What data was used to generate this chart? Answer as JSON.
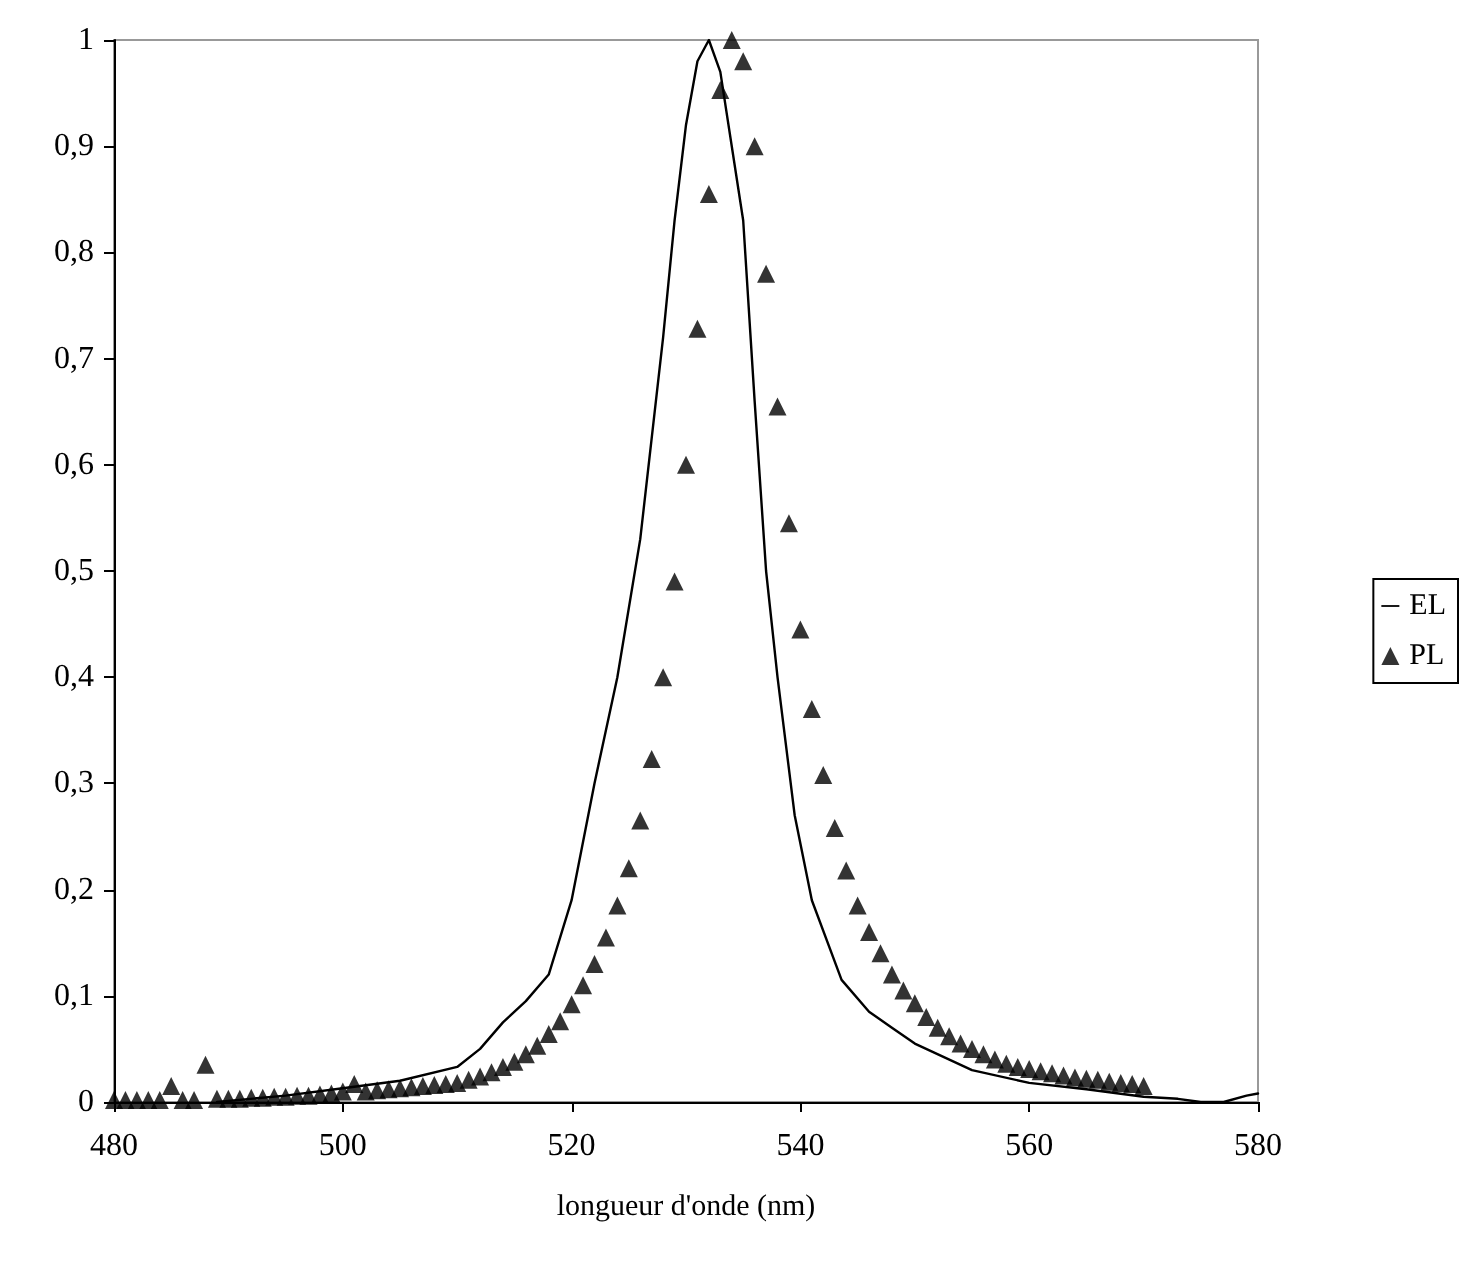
{
  "chart_data": {
    "type": "line",
    "xlabel": "longueur d'onde (nm)",
    "xlim": [
      480,
      580
    ],
    "xticks": [
      480,
      500,
      520,
      540,
      560,
      580
    ],
    "ylim": [
      0,
      1
    ],
    "yticks": [
      {
        "value": 0,
        "label": "0"
      },
      {
        "value": 0.1,
        "label": "0,1"
      },
      {
        "value": 0.2,
        "label": "0,2"
      },
      {
        "value": 0.3,
        "label": "0,3"
      },
      {
        "value": 0.4,
        "label": "0,4"
      },
      {
        "value": 0.5,
        "label": "0,5"
      },
      {
        "value": 0.6,
        "label": "0,6"
      },
      {
        "value": 0.7,
        "label": "0,7"
      },
      {
        "value": 0.8,
        "label": "0,8"
      },
      {
        "value": 0.9,
        "label": "0,9"
      },
      {
        "value": 1,
        "label": "1"
      }
    ],
    "grid": false,
    "legend": "right",
    "series": [
      {
        "name": "EL",
        "marker": "none",
        "line_style": "solid",
        "color": "#000000",
        "x": [
          489,
          495,
          500,
          505,
          510,
          512,
          514,
          516,
          518,
          520,
          522,
          524,
          526,
          528,
          529,
          530,
          531,
          532,
          533,
          534,
          535,
          536,
          537,
          538,
          539.5,
          541,
          543.6,
          546,
          548,
          550,
          555,
          560,
          565,
          570,
          573,
          575,
          577,
          579,
          580
        ],
        "values": [
          0,
          0.006,
          0.013,
          0.02,
          0.033,
          0.05,
          0.075,
          0.095,
          0.12,
          0.19,
          0.3,
          0.4,
          0.53,
          0.72,
          0.83,
          0.92,
          0.98,
          1,
          0.97,
          0.9,
          0.83,
          0.66,
          0.5,
          0.4,
          0.27,
          0.19,
          0.115,
          0.085,
          0.07,
          0.055,
          0.03,
          0.018,
          0.012,
          0.005,
          0.003,
          0,
          0,
          0.006,
          0.008
        ]
      },
      {
        "name": "PL",
        "type": "scatter",
        "marker": "triangle",
        "color": "#000000",
        "x": [
          480,
          481,
          482,
          483,
          484,
          485,
          486,
          487,
          488,
          489,
          490,
          491,
          492,
          493,
          494,
          495,
          496,
          497,
          498,
          499,
          500,
          501,
          502,
          503,
          504,
          505,
          506,
          507,
          508,
          509,
          510,
          511,
          512,
          513,
          514,
          515,
          516,
          517,
          518,
          519,
          520,
          521,
          522,
          523,
          524,
          525,
          526,
          527,
          528,
          529,
          530,
          531,
          532,
          533,
          534,
          535,
          536,
          537,
          538,
          539,
          540,
          541,
          542,
          543,
          544,
          545,
          546,
          547,
          548,
          549,
          550,
          551,
          552,
          553,
          554,
          555,
          556,
          557,
          558,
          559,
          560,
          561,
          562,
          563,
          564,
          565,
          566,
          567,
          568,
          569,
          570
        ],
        "values": [
          0.002,
          0.002,
          0.002,
          0.002,
          0.002,
          0.015,
          0.002,
          0.002,
          0.035,
          0.003,
          0.003,
          0.003,
          0.004,
          0.004,
          0.005,
          0.005,
          0.006,
          0.006,
          0.007,
          0.008,
          0.01,
          0.017,
          0.01,
          0.011,
          0.012,
          0.013,
          0.014,
          0.015,
          0.016,
          0.017,
          0.018,
          0.021,
          0.024,
          0.028,
          0.033,
          0.038,
          0.045,
          0.053,
          0.064,
          0.076,
          0.092,
          0.11,
          0.13,
          0.155,
          0.185,
          0.22,
          0.265,
          0.323,
          0.4,
          0.49,
          0.6,
          0.728,
          0.855,
          0.953,
          1,
          0.98,
          0.9,
          0.78,
          0.655,
          0.545,
          0.445,
          0.37,
          0.308,
          0.258,
          0.218,
          0.185,
          0.16,
          0.14,
          0.12,
          0.105,
          0.093,
          0.08,
          0.07,
          0.062,
          0.055,
          0.05,
          0.045,
          0.04,
          0.036,
          0.033,
          0.031,
          0.029,
          0.027,
          0.025,
          0.023,
          0.022,
          0.021,
          0.019,
          0.018,
          0.017,
          0.015
        ]
      }
    ]
  }
}
